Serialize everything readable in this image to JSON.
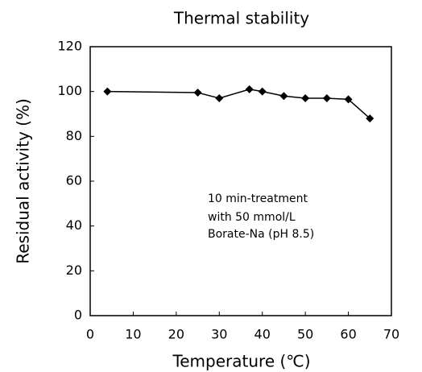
{
  "chart_data": {
    "type": "line",
    "title": "Thermal stability",
    "x_label": "Temperature (℃)",
    "y_label": "Residual activity (%)",
    "x": [
      4,
      25,
      30,
      37,
      40,
      45,
      50,
      55,
      60,
      65
    ],
    "series": [
      {
        "color": "#000000",
        "values": [
          100,
          99.5,
          97,
          101,
          100,
          98,
          97,
          97,
          96.5,
          88
        ]
      }
    ],
    "xlim": [
      0,
      70
    ],
    "xticks": [
      0,
      10,
      20,
      30,
      40,
      50,
      60,
      70
    ],
    "ylim": [
      0,
      120
    ],
    "yticks": [
      0,
      20,
      40,
      60,
      80,
      100,
      120
    ],
    "grid": false,
    "annotation": [
      "10 min-treatment",
      "with 50 mmol/L",
      "Borate-Na (pH 8.5)"
    ]
  }
}
